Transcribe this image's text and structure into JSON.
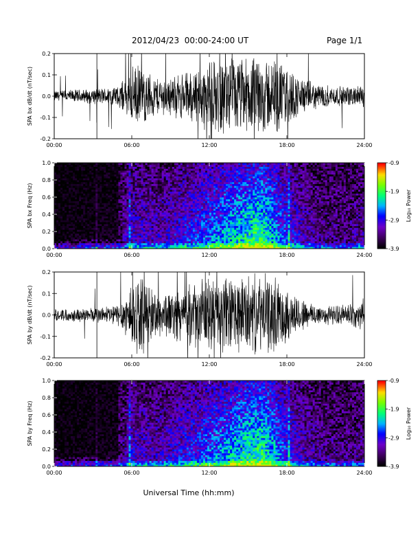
{
  "header": {
    "title": "2012/04/23  00:00-24:00 UT",
    "page": "Page 1/1"
  },
  "colorbar": {
    "label": "Log₁₀ Power",
    "ticks": [
      "-0.9",
      "-1.9",
      "-2.9",
      "-3.9"
    ],
    "range": [
      -3.9,
      -0.9
    ]
  },
  "chart_data": [
    {
      "type": "line",
      "ylabel": "SPA bx dB/dt (nT/sec)",
      "xlim": [
        0,
        24
      ],
      "ylim": [
        -0.2,
        0.2
      ],
      "xticks": [
        "00:00",
        "06:00",
        "12:00",
        "18:00",
        "24:00"
      ],
      "yticks": [
        "-0.2",
        "-0.1",
        "0.0",
        "0.1",
        "0.2"
      ],
      "envelope": {
        "x": [
          0,
          2,
          3,
          4,
          5,
          5.5,
          6,
          6.5,
          7,
          8,
          9,
          10,
          11,
          12,
          13,
          14,
          15,
          16,
          17,
          18,
          19,
          20,
          21,
          22,
          23,
          24
        ],
        "amplitude": [
          0.03,
          0.035,
          0.04,
          0.045,
          0.06,
          0.09,
          0.15,
          0.16,
          0.14,
          0.1,
          0.1,
          0.12,
          0.15,
          0.18,
          0.2,
          0.2,
          0.2,
          0.2,
          0.2,
          0.16,
          0.1,
          0.07,
          0.06,
          0.05,
          0.05,
          0.06
        ]
      }
    },
    {
      "type": "heatmap",
      "ylabel": "SPA bx Freq (Hz)",
      "xlim": [
        0,
        24
      ],
      "ylim": [
        0.0,
        1.0
      ],
      "xticks": [
        "00:00",
        "06:00",
        "12:00",
        "18:00",
        "24:00"
      ],
      "yticks": [
        "0.0",
        "0.2",
        "0.4",
        "0.6",
        "0.8",
        "1.0"
      ],
      "zlim": [
        -3.9,
        -0.9
      ]
    },
    {
      "type": "line",
      "ylabel": "SPA by dB/dt (nT/sec)",
      "xlim": [
        0,
        24
      ],
      "ylim": [
        -0.2,
        0.2
      ],
      "xticks": [
        "00:00",
        "06:00",
        "12:00",
        "18:00",
        "24:00"
      ],
      "yticks": [
        "-0.2",
        "-0.1",
        "0.0",
        "0.1",
        "0.2"
      ],
      "envelope": {
        "x": [
          0,
          2,
          3,
          4,
          5,
          5.5,
          6,
          6.5,
          7,
          8,
          9,
          10,
          11,
          12,
          13,
          14,
          15,
          16,
          17,
          18,
          19,
          20,
          21,
          22,
          23,
          24
        ],
        "amplitude": [
          0.03,
          0.035,
          0.04,
          0.045,
          0.06,
          0.1,
          0.2,
          0.2,
          0.18,
          0.12,
          0.12,
          0.14,
          0.17,
          0.2,
          0.2,
          0.2,
          0.2,
          0.2,
          0.2,
          0.14,
          0.09,
          0.06,
          0.05,
          0.05,
          0.06,
          0.08
        ]
      }
    },
    {
      "type": "heatmap",
      "ylabel": "SPA by Freq (Hz)",
      "xlim": [
        0,
        24
      ],
      "ylim": [
        0.0,
        1.0
      ],
      "xticks": [
        "00:00",
        "06:00",
        "12:00",
        "18:00",
        "24:00"
      ],
      "yticks": [
        "0.0",
        "0.2",
        "0.4",
        "0.6",
        "0.8",
        "1.0"
      ],
      "zlim": [
        -3.9,
        -0.9
      ]
    }
  ],
  "xlabel": "Universal Time (hh:mm)"
}
